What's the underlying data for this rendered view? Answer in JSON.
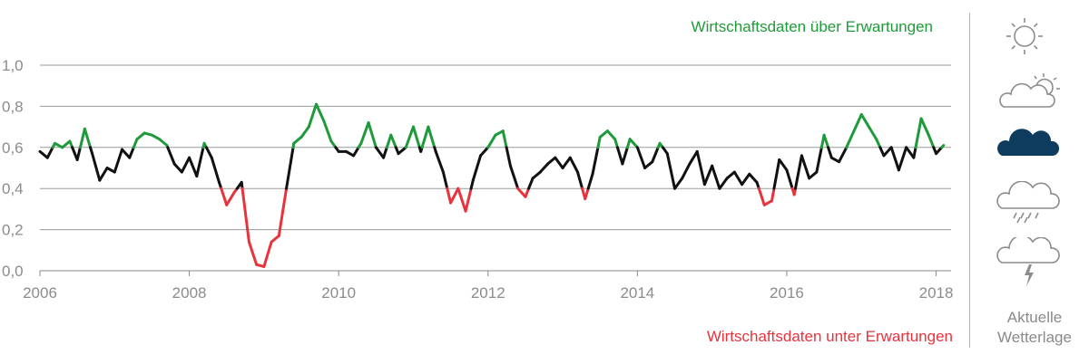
{
  "chart_data": {
    "type": "line",
    "title": "",
    "xlabel": "",
    "ylabel": "",
    "xlim": [
      2006,
      2018.2
    ],
    "ylim": [
      0,
      1.0
    ],
    "x_ticks": [
      "2006",
      "2008",
      "2010",
      "2012",
      "2014",
      "2016",
      "2018"
    ],
    "y_ticks": [
      "0,0",
      "0,2",
      "0,4",
      "0,6",
      "0,8",
      "1,0"
    ],
    "grid": "horizontal",
    "annotations": {
      "above": "Wirtschaftsdaten über Erwartungen",
      "below": "Wirtschaftsdaten unter Erwartungen"
    },
    "thresholds": {
      "upper": 0.6,
      "lower": 0.4
    },
    "colors": {
      "above": "#1f9a3a",
      "neutral": "#111111",
      "below": "#e8333c",
      "grid": "#9a9a9a",
      "axis_text": "#8c8c8c"
    },
    "series": [
      {
        "x": [
          2006.0,
          2006.1,
          2006.2,
          2006.3,
          2006.4,
          2006.5,
          2006.6,
          2006.7,
          2006.8,
          2006.9,
          2007.0,
          2007.1,
          2007.2,
          2007.3,
          2007.4,
          2007.5,
          2007.6,
          2007.7,
          2007.8,
          2007.9,
          2008.0,
          2008.1,
          2008.2,
          2008.3,
          2008.4,
          2008.5,
          2008.6,
          2008.7,
          2008.8,
          2008.9,
          2009.0,
          2009.1,
          2009.2,
          2009.3,
          2009.4,
          2009.5,
          2009.6,
          2009.7,
          2009.8,
          2009.9,
          2010.0,
          2010.1,
          2010.2,
          2010.3,
          2010.4,
          2010.5,
          2010.6,
          2010.7,
          2010.8,
          2010.9,
          2011.0,
          2011.1,
          2011.2,
          2011.3,
          2011.4,
          2011.5,
          2011.6,
          2011.7,
          2011.8,
          2011.9,
          2012.0,
          2012.1,
          2012.2,
          2012.3,
          2012.4,
          2012.5,
          2012.6,
          2012.7,
          2012.8,
          2012.9,
          2013.0,
          2013.1,
          2013.2,
          2013.3,
          2013.4,
          2013.5,
          2013.6,
          2013.7,
          2013.8,
          2013.9,
          2014.0,
          2014.1,
          2014.2,
          2014.3,
          2014.4,
          2014.5,
          2014.6,
          2014.7,
          2014.8,
          2014.9,
          2015.0,
          2015.1,
          2015.2,
          2015.3,
          2015.4,
          2015.5,
          2015.6,
          2015.7,
          2015.8,
          2015.9,
          2016.0,
          2016.1,
          2016.2,
          2016.3,
          2016.4,
          2016.5,
          2016.6,
          2016.7,
          2016.8,
          2016.9,
          2017.0,
          2017.1,
          2017.2,
          2017.3,
          2017.4,
          2017.5,
          2017.6,
          2017.7,
          2017.8,
          2017.9,
          2018.0,
          2018.1
        ],
        "values": [
          0.58,
          0.55,
          0.62,
          0.6,
          0.63,
          0.54,
          0.69,
          0.57,
          0.44,
          0.5,
          0.48,
          0.59,
          0.55,
          0.64,
          0.67,
          0.66,
          0.64,
          0.61,
          0.52,
          0.48,
          0.55,
          0.46,
          0.62,
          0.55,
          0.43,
          0.32,
          0.38,
          0.43,
          0.14,
          0.03,
          0.02,
          0.14,
          0.17,
          0.4,
          0.62,
          0.65,
          0.7,
          0.81,
          0.73,
          0.63,
          0.58,
          0.58,
          0.56,
          0.62,
          0.72,
          0.6,
          0.55,
          0.66,
          0.57,
          0.6,
          0.7,
          0.58,
          0.7,
          0.58,
          0.48,
          0.33,
          0.4,
          0.29,
          0.44,
          0.56,
          0.6,
          0.66,
          0.68,
          0.51,
          0.4,
          0.36,
          0.45,
          0.48,
          0.52,
          0.55,
          0.5,
          0.55,
          0.48,
          0.35,
          0.47,
          0.65,
          0.68,
          0.64,
          0.52,
          0.64,
          0.6,
          0.5,
          0.53,
          0.62,
          0.57,
          0.4,
          0.45,
          0.52,
          0.58,
          0.42,
          0.51,
          0.4,
          0.45,
          0.48,
          0.42,
          0.47,
          0.43,
          0.32,
          0.34,
          0.54,
          0.49,
          0.37,
          0.56,
          0.45,
          0.48,
          0.66,
          0.55,
          0.53,
          0.6,
          0.68,
          0.76,
          0.7,
          0.64,
          0.56,
          0.6,
          0.49,
          0.6,
          0.55,
          0.74,
          0.66,
          0.57,
          0.61
        ]
      }
    ]
  },
  "weather": {
    "icons": [
      "sun-icon",
      "sun-cloud-icon",
      "cloud-icon",
      "rain-cloud-icon",
      "thunder-cloud-icon"
    ],
    "active": "cloud-icon",
    "caption_line1": "Aktuelle",
    "caption_line2": "Wetterlage",
    "active_color": "#0d3c5e",
    "inactive_color": "#8c8c8c"
  }
}
